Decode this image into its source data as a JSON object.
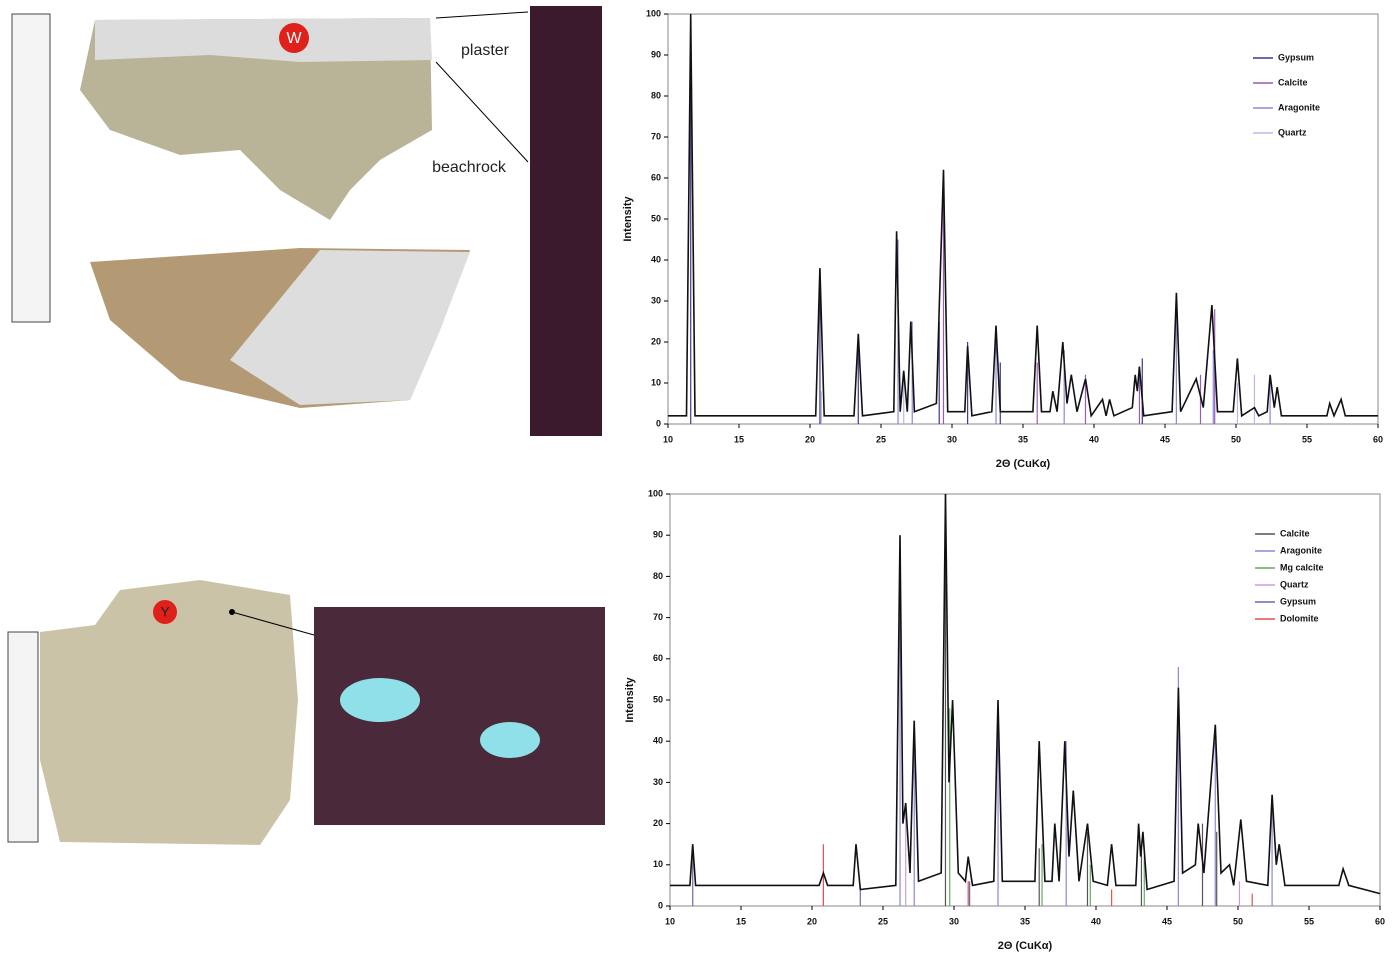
{
  "photos": {
    "sample_top": "W",
    "sample_bottom": "Y",
    "upper_layer": "plaster",
    "lower_layer": "beachrock"
  },
  "chart_data": [
    {
      "type": "xrd",
      "xlabel": "2Θ (CuKα)",
      "ylabel": "Intensity",
      "xlim": [
        10,
        60
      ],
      "ylim": [
        0,
        100
      ],
      "xticks": [
        10,
        15,
        20,
        25,
        30,
        35,
        40,
        45,
        50,
        55,
        60
      ],
      "yticks": [
        0,
        10,
        20,
        30,
        40,
        50,
        60,
        70,
        80,
        90,
        100
      ],
      "legend": "upper right",
      "color": "#111111",
      "x": [
        10,
        11.3,
        11.6,
        11.9,
        20.4,
        20.7,
        21.0,
        23.1,
        23.4,
        23.7,
        25.9,
        26.1,
        26.35,
        26.6,
        26.85,
        27.1,
        27.35,
        28.9,
        29.1,
        29.4,
        29.7,
        30.9,
        31.1,
        31.4,
        32.8,
        33.1,
        33.4,
        35.7,
        36.0,
        36.3,
        36.9,
        37.1,
        37.4,
        37.8,
        38.1,
        38.4,
        38.8,
        39.4,
        39.8,
        40.6,
        40.85,
        41.1,
        41.4,
        42.7,
        42.9,
        43.05,
        43.2,
        43.5,
        45.5,
        45.8,
        46.1,
        47.2,
        47.7,
        48.3,
        48.7,
        49.8,
        50.1,
        50.4,
        51.3,
        51.6,
        52.2,
        52.4,
        52.7,
        52.9,
        53.2,
        56.4,
        56.6,
        56.9,
        57.4,
        57.7,
        60
      ],
      "values": [
        2,
        2,
        100,
        2,
        2,
        38,
        2,
        2,
        22,
        2,
        3,
        47,
        3,
        13,
        3,
        25,
        3,
        5,
        28,
        62,
        3,
        3,
        19,
        2,
        3,
        24,
        3,
        3,
        24,
        3,
        3,
        8,
        3,
        20,
        5,
        12,
        3,
        11,
        2,
        6,
        2,
        6,
        2,
        4,
        12,
        8,
        14,
        2,
        3,
        32,
        3,
        11,
        4,
        29,
        3,
        3,
        16,
        2,
        4,
        2,
        3,
        12,
        4,
        9,
        2,
        2,
        5,
        2,
        6,
        2,
        2
      ],
      "series": [
        {
          "name": "Gypsum",
          "color": "#3a3a8a",
          "x": [
            11.6,
            20.7,
            23.4,
            29.1,
            31.1,
            33.4,
            43.4
          ],
          "values": [
            100,
            38,
            20,
            25,
            20,
            15,
            16
          ]
        },
        {
          "name": "Calcite",
          "color": "#9a5ab8",
          "x": [
            29.4,
            36.0,
            39.4,
            43.2,
            47.5,
            48.5
          ],
          "values": [
            60,
            15,
            12,
            14,
            12,
            28
          ]
        },
        {
          "name": "Aragonite",
          "color": "#8888dd",
          "x": [
            26.2,
            27.2,
            33.1,
            37.9,
            45.8,
            48.4,
            52.4
          ],
          "values": [
            45,
            25,
            24,
            18,
            30,
            18,
            10
          ]
        },
        {
          "name": "Quartz",
          "color": "#b8b8e8",
          "x": [
            20.8,
            26.6,
            50.1,
            51.3
          ],
          "values": [
            8,
            12,
            10,
            12
          ]
        }
      ]
    },
    {
      "type": "xrd",
      "xlabel": "2Θ (CuKα)",
      "ylabel": "Intensity",
      "xlim": [
        10,
        60
      ],
      "ylim": [
        0,
        100
      ],
      "xticks": [
        10,
        15,
        20,
        25,
        30,
        35,
        40,
        45,
        50,
        55,
        60
      ],
      "yticks": [
        0,
        10,
        20,
        30,
        40,
        50,
        60,
        70,
        80,
        90,
        100
      ],
      "legend": "upper right",
      "color": "#111111",
      "x": [
        10,
        11.4,
        11.6,
        11.8,
        20.5,
        20.8,
        21.1,
        22.9,
        23.1,
        23.4,
        25.9,
        26.2,
        26.4,
        26.6,
        26.9,
        27.2,
        27.5,
        29.1,
        29.4,
        29.65,
        29.9,
        30.3,
        30.8,
        31.0,
        31.3,
        32.8,
        33.1,
        33.4,
        35.7,
        36.0,
        36.4,
        36.9,
        37.1,
        37.4,
        37.8,
        38.1,
        38.4,
        38.8,
        39.4,
        39.8,
        40.8,
        41.1,
        41.4,
        42.8,
        43.0,
        43.15,
        43.3,
        43.6,
        45.5,
        45.8,
        46.1,
        47.0,
        47.2,
        47.6,
        48.4,
        48.8,
        49.4,
        49.7,
        50.2,
        50.6,
        52.1,
        52.4,
        52.7,
        52.9,
        53.3,
        57.1,
        57.4,
        57.8,
        60
      ],
      "values": [
        5,
        5,
        15,
        5,
        5,
        8,
        5,
        5,
        15,
        4,
        5,
        90,
        20,
        25,
        8,
        45,
        6,
        8,
        100,
        30,
        50,
        8,
        6,
        12,
        5,
        6,
        50,
        6,
        6,
        40,
        6,
        6,
        20,
        6,
        40,
        12,
        28,
        6,
        20,
        6,
        5,
        15,
        5,
        5,
        20,
        12,
        18,
        4,
        6,
        53,
        8,
        10,
        20,
        8,
        44,
        8,
        10,
        5,
        21,
        6,
        5,
        27,
        10,
        15,
        5,
        5,
        9,
        5,
        3
      ],
      "series": [
        {
          "name": "Calcite",
          "color": "#555555",
          "x": [
            29.4,
            36.0,
            39.4,
            43.2,
            47.5,
            48.5
          ],
          "values": [
            100,
            14,
            18,
            15,
            20,
            18
          ]
        },
        {
          "name": "Aragonite",
          "color": "#8888dd",
          "x": [
            26.2,
            27.2,
            33.1,
            37.9,
            45.8,
            48.4,
            52.4
          ],
          "values": [
            90,
            45,
            48,
            40,
            58,
            40,
            25
          ]
        },
        {
          "name": "Mg calcite",
          "color": "#66aa66",
          "x": [
            29.7,
            36.2,
            39.6,
            43.4
          ],
          "values": [
            48,
            15,
            10,
            12
          ]
        },
        {
          "name": "Quartz",
          "color": "#c8a0d8",
          "x": [
            20.8,
            26.6,
            50.1
          ],
          "values": [
            4,
            25,
            6
          ]
        },
        {
          "name": "Gypsum",
          "color": "#6a6aa8",
          "x": [
            11.6,
            23.4,
            31.1
          ],
          "values": [
            15,
            5,
            6
          ]
        },
        {
          "name": "Dolomite",
          "color": "#e05050",
          "x": [
            20.8,
            31.0,
            41.1,
            51.0
          ],
          "values": [
            15,
            6,
            4,
            3
          ]
        }
      ]
    }
  ]
}
